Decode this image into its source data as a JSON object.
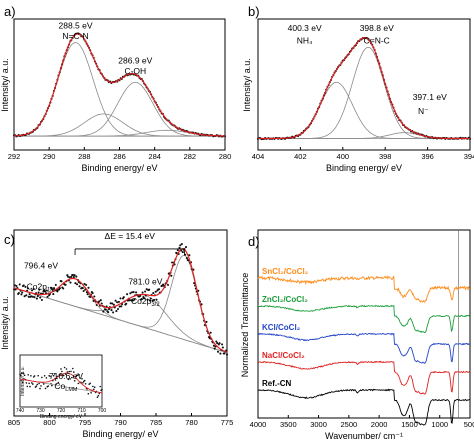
{
  "chart_data": [
    {
      "panel": "a)",
      "type": "line",
      "xlabel": "Binding energy/ eV",
      "ylabel": "Intensity/ a.u.",
      "xlim": [
        292,
        280
      ],
      "xticks": [
        292,
        290,
        288,
        286,
        284,
        282,
        280
      ],
      "ylim": [
        0,
        1
      ],
      "peaks": [
        {
          "center": 288.5,
          "height": 0.8,
          "width": 1.0
        },
        {
          "center": 286.9,
          "height": 0.19,
          "width": 1.1
        },
        {
          "center": 285.1,
          "height": 0.46,
          "width": 1.0
        },
        {
          "center": 283.3,
          "height": 0.05,
          "width": 1.2
        }
      ],
      "background": 0.05,
      "annotations": [
        {
          "text": "288.5 eV",
          "x": 288.5,
          "y": 0.97
        },
        {
          "text": "N=C-N",
          "x": 288.5,
          "y": 0.88
        },
        {
          "text": "286.9 eV",
          "x": 285.1,
          "y": 0.67
        },
        {
          "text": "C-OH",
          "x": 285.1,
          "y": 0.58
        }
      ]
    },
    {
      "panel": "b)",
      "type": "line",
      "xlabel": "Binding energy/ eV",
      "ylabel": "Intensity/ a.u.",
      "xlim": [
        404,
        394
      ],
      "xticks": [
        404,
        402,
        400,
        398,
        396,
        394
      ],
      "ylim": [
        0,
        1
      ],
      "peaks": [
        {
          "center": 400.3,
          "height": 0.48,
          "width": 0.75
        },
        {
          "center": 398.8,
          "height": 0.78,
          "width": 0.75
        },
        {
          "center": 397.1,
          "height": 0.05,
          "width": 0.7
        }
      ],
      "background": 0.03,
      "annotations": [
        {
          "text": "400.3 eV",
          "x": 401.8,
          "y": 0.95
        },
        {
          "text": "NH₄",
          "x": 401.8,
          "y": 0.84
        },
        {
          "text": "398.8 eV",
          "x": 398.4,
          "y": 0.95
        },
        {
          "text": "C=N-C",
          "x": 398.4,
          "y": 0.84
        },
        {
          "text": "397.1 eV",
          "x": 395.9,
          "y": 0.36
        },
        {
          "text": "N⁻",
          "x": 396.2,
          "y": 0.24
        }
      ]
    },
    {
      "panel": "c)",
      "type": "line",
      "xlabel": "Binding energy/ eV",
      "ylabel": "Intensity/ a.u.",
      "xlim": [
        805,
        775
      ],
      "xticks": [
        805,
        800,
        795,
        790,
        785,
        780,
        775
      ],
      "ylim": [
        0,
        1
      ],
      "peaks": [
        {
          "center": 796.4,
          "height": 0.17,
          "width": 2.0
        },
        {
          "center": 781.0,
          "height": 0.52,
          "width": 1.8
        },
        {
          "center": 786.5,
          "height": 0.2,
          "width": 3.0
        }
      ],
      "background_start": 0.68,
      "background_end": 0.28,
      "annotations": [
        {
          "text": "ΔE = 15.4 eV",
          "x": 788.7,
          "y": 0.98
        },
        {
          "text": "796.4 eV",
          "x": 801.2,
          "y": 0.8
        },
        {
          "text": "Co2p",
          "sub": "1/2",
          "x": 801.2,
          "y": 0.67
        },
        {
          "text": "781.0 eV",
          "x": 786.5,
          "y": 0.7
        },
        {
          "text": "Co2p",
          "sub": "3/2",
          "x": 786.5,
          "y": 0.58
        }
      ],
      "inset": {
        "ylabel": "Intensity/ a.u.",
        "xlabel": "Binding energy/ eV",
        "xlim": [
          740,
          700
        ],
        "xticks": [
          740,
          730,
          720,
          710,
          700
        ],
        "peak": {
          "center": 716.6,
          "height": 0.35,
          "width": 5
        },
        "annotation": {
          "text": "716.6 eV",
          "sub_text": "Co",
          "sub": "LMM"
        }
      }
    },
    {
      "panel": "d)",
      "type": "line",
      "xlabel": "Wavenumber/ cm⁻¹",
      "ylabel": "Normalized Transmittance",
      "xlim": [
        4000,
        500
      ],
      "xticks": [
        4000,
        3500,
        3000,
        2500,
        2000,
        1500,
        1000,
        500
      ],
      "series": [
        {
          "name": "SnCl₂/CoCl₂",
          "color": "#ff8c1a",
          "offset": 4
        },
        {
          "name": "ZnCl₂/CoCl₂",
          "color": "#1a9e3a",
          "offset": 3
        },
        {
          "name": "KCl/CoCl₂",
          "color": "#2346c8",
          "offset": 2
        },
        {
          "name": "NaCl/CoCl₂",
          "color": "#e02020",
          "offset": 1
        },
        {
          "name": "Ref.-CN",
          "color": "#000000",
          "offset": 0
        }
      ]
    }
  ]
}
